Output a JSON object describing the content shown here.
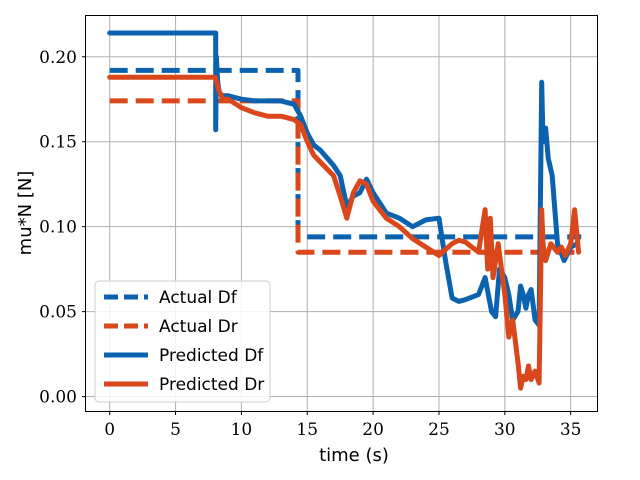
{
  "chart_data": {
    "type": "line",
    "xlabel": "time (s)",
    "ylabel": "mu*N [N]",
    "xlim": [
      -1.8,
      37.0
    ],
    "ylim": [
      -0.0085,
      0.224
    ],
    "xticks": [
      "0",
      "5",
      "10",
      "15",
      "20",
      "25",
      "30",
      "35"
    ],
    "xtick_values": [
      0,
      5,
      10,
      15,
      20,
      25,
      30,
      35
    ],
    "yticks": [
      "0.00",
      "0.05",
      "0.10",
      "0.15",
      "0.20"
    ],
    "ytick_values": [
      0.0,
      0.05,
      0.1,
      0.15,
      0.2
    ],
    "grid": true,
    "legend_position": "lower-left",
    "series": [
      {
        "name": "Actual Df",
        "style": "dashed",
        "color": "#0b63b0",
        "x": [
          0,
          14.3,
          14.3,
          35.8
        ],
        "y": [
          0.192,
          0.192,
          0.094,
          0.094
        ]
      },
      {
        "name": "Actual Dr",
        "style": "dashed",
        "color": "#d9471a",
        "x": [
          0,
          14.3,
          14.3,
          35.8
        ],
        "y": [
          0.174,
          0.174,
          0.085,
          0.085
        ]
      },
      {
        "name": "Predicted Df",
        "style": "solid",
        "color": "#0b63b0",
        "x": [
          0,
          8.05,
          8.05,
          8.1,
          8.2,
          8.3,
          8.4,
          8.6,
          9,
          10,
          11,
          12,
          13,
          14,
          14.5,
          15,
          15.5,
          16,
          17,
          17.5,
          18,
          18.5,
          19,
          19.5,
          20,
          21,
          22,
          23,
          24,
          25,
          25.5,
          26,
          26.5,
          27,
          28,
          28.5,
          29,
          29.3,
          29.6,
          30,
          30.3,
          30.6,
          31,
          31.2,
          31.4,
          31.6,
          31.8,
          32,
          32.3,
          32.6,
          32.8,
          32.9,
          33.1,
          33.3,
          33.6,
          34,
          34.5,
          35,
          35.5
        ],
        "y": [
          0.214,
          0.214,
          0.157,
          0.2,
          0.185,
          0.18,
          0.178,
          0.177,
          0.177,
          0.175,
          0.174,
          0.174,
          0.174,
          0.172,
          0.165,
          0.155,
          0.148,
          0.145,
          0.136,
          0.13,
          0.112,
          0.118,
          0.12,
          0.128,
          0.12,
          0.108,
          0.105,
          0.1,
          0.104,
          0.105,
          0.08,
          0.058,
          0.056,
          0.057,
          0.06,
          0.07,
          0.05,
          0.047,
          0.075,
          0.07,
          0.06,
          0.045,
          0.05,
          0.065,
          0.06,
          0.052,
          0.06,
          0.063,
          0.045,
          0.042,
          0.185,
          0.15,
          0.158,
          0.14,
          0.13,
          0.09,
          0.08,
          0.088,
          0.09
        ]
      },
      {
        "name": "Predicted Dr",
        "style": "solid",
        "color": "#d9471a",
        "x": [
          0,
          8,
          8.3,
          8.6,
          9,
          10,
          11,
          12,
          13,
          14,
          14.5,
          15,
          15.5,
          16,
          17,
          17.5,
          18,
          18.5,
          19,
          19.5,
          20,
          21,
          22,
          23,
          24,
          25,
          26,
          26.5,
          27,
          28,
          28.5,
          28.7,
          28.9,
          29.1,
          29.5,
          30,
          30.3,
          30.6,
          31,
          31.2,
          31.4,
          31.6,
          31.8,
          32,
          32.3,
          32.6,
          32.8,
          32.9,
          33.1,
          33.5,
          34,
          34.3,
          34.6,
          35,
          35.3,
          35.6
        ],
        "y": [
          0.188,
          0.188,
          0.18,
          0.175,
          0.175,
          0.17,
          0.167,
          0.165,
          0.165,
          0.163,
          0.16,
          0.15,
          0.142,
          0.138,
          0.13,
          0.118,
          0.105,
          0.12,
          0.127,
          0.125,
          0.115,
          0.105,
          0.1,
          0.093,
          0.088,
          0.083,
          0.09,
          0.092,
          0.091,
          0.085,
          0.11,
          0.075,
          0.105,
          0.07,
          0.09,
          0.06,
          0.035,
          0.045,
          0.02,
          0.005,
          0.012,
          0.01,
          0.018,
          0.01,
          0.015,
          0.008,
          0.11,
          0.09,
          0.08,
          0.09,
          0.085,
          0.088,
          0.083,
          0.09,
          0.11,
          0.085
        ]
      }
    ]
  }
}
